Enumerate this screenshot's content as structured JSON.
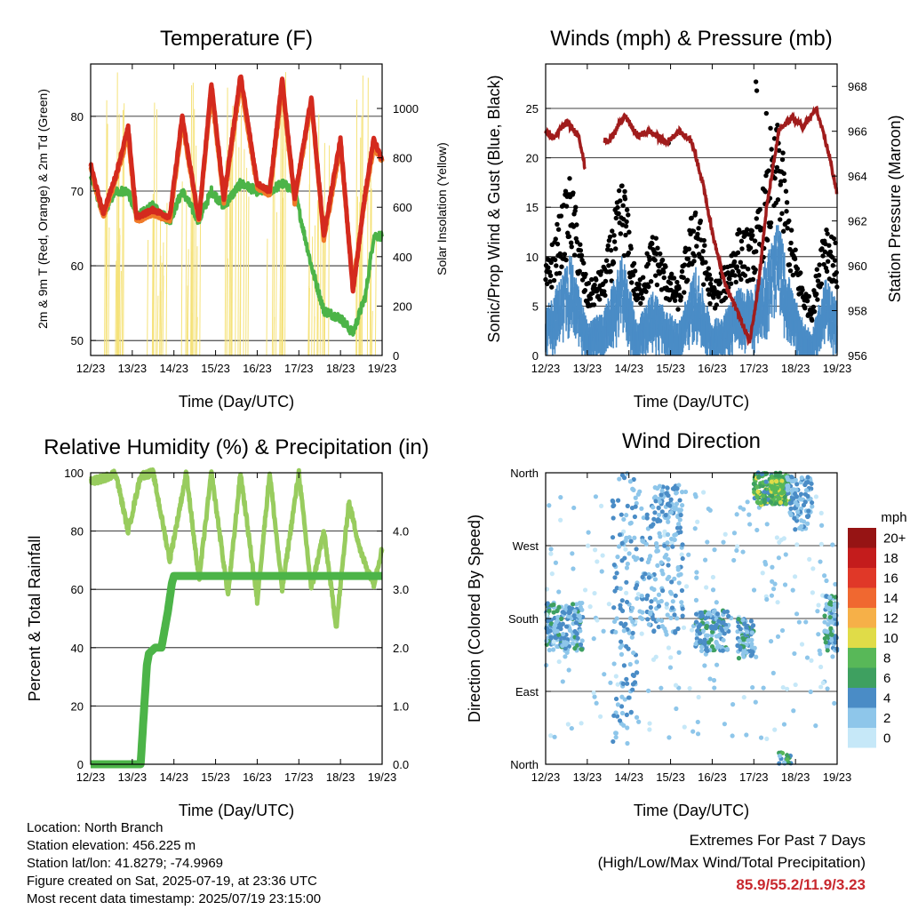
{
  "panels": [
    {
      "title": "Temperature (F)",
      "xlabel": "Time (Day/UTC)",
      "ylabel_left": "2m & 9m T (Red, Orange) & 2m Td (Green)",
      "ylabel_right": "Solar Insolation (Yellow)",
      "xticks": [
        "12/23",
        "13/23",
        "14/23",
        "15/23",
        "16/23",
        "17/23",
        "18/23",
        "19/23"
      ],
      "yticks_left": [
        "50",
        "60",
        "70",
        "80"
      ],
      "yticks_right": [
        "0",
        "200",
        "400",
        "600",
        "800",
        "1000"
      ]
    },
    {
      "title": "Winds (mph) & Pressure (mb)",
      "xlabel": "Time (Day/UTC)",
      "ylabel_left": "Sonic/Prop Wind & Gust (Blue, Black)",
      "ylabel_right": "Station Pressure (Maroon)",
      "xticks": [
        "12/23",
        "13/23",
        "14/23",
        "15/23",
        "16/23",
        "17/23",
        "18/23",
        "19/23"
      ],
      "yticks_left": [
        "0",
        "5",
        "10",
        "15",
        "20",
        "25"
      ],
      "yticks_right": [
        "956",
        "958",
        "960",
        "962",
        "964",
        "966",
        "968"
      ]
    },
    {
      "title": "Relative Humidity (%) & Precipitation (in)",
      "xlabel": "Time (Day/UTC)",
      "ylabel_left": "Percent & Total Rainfall",
      "ylabel_right": "",
      "xticks": [
        "12/23",
        "13/23",
        "14/23",
        "15/23",
        "16/23",
        "17/23",
        "18/23",
        "19/23"
      ],
      "yticks_left": [
        "0",
        "20",
        "40",
        "60",
        "80",
        "100"
      ],
      "yticks_right": [
        "0.0",
        "1.0",
        "2.0",
        "3.0",
        "4.0"
      ]
    },
    {
      "title": "Wind Direction",
      "xlabel": "Time (Day/UTC)",
      "ylabel_left": "Direction (Colored By Speed)",
      "ylabel_right": "",
      "xticks": [
        "12/23",
        "13/23",
        "14/23",
        "15/23",
        "16/23",
        "17/23",
        "18/23",
        "19/23"
      ],
      "yticks_left": [
        "North",
        "East",
        "South",
        "West",
        "North"
      ],
      "yticks_right": []
    }
  ],
  "colorbar": {
    "unit": "mph",
    "labels": [
      "0",
      "2",
      "4",
      "6",
      "8",
      "10",
      "12",
      "14",
      "16",
      "18",
      "20+"
    ],
    "colors": [
      "#c6e8f8",
      "#8ec6ea",
      "#4a8cc6",
      "#3ea060",
      "#58b858",
      "#e0dc48",
      "#f6b048",
      "#f06830",
      "#e03828",
      "#c41c1c",
      "#961414"
    ]
  },
  "footer": {
    "lines": [
      "Location: North Branch",
      "Station elevation: 456.225 m",
      "Station lat/lon: 41.8279; -74.9969",
      "Figure created on Sat, 2025-07-19, at 23:36 UTC",
      "Most recent data timestamp: 2025/07/19 23:15:00"
    ]
  },
  "extremes": {
    "title": "Extremes For Past 7 Days",
    "subtitle": "(High/Low/Max Wind/Total Precipitation)",
    "values": "85.9/55.2/11.9/3.23",
    "value_color": "#c8282e"
  },
  "chart_data": [
    {
      "type": "line",
      "title": "Temperature (F)",
      "xlabel": "Time (Day/UTC)",
      "ylabel": "2m & 9m T (Red, Orange) & 2m Td (Green)",
      "y2label": "Solar Insolation (Yellow)",
      "x_range_days": [
        12,
        19
      ],
      "ylim": [
        48,
        87
      ],
      "y2lim": [
        0,
        1180
      ],
      "x_days": [
        12.0,
        12.3,
        12.6,
        12.9,
        13.1,
        13.5,
        13.9,
        14.2,
        14.6,
        14.9,
        15.2,
        15.6,
        16.0,
        16.3,
        16.6,
        16.9,
        17.3,
        17.6,
        18.0,
        18.3,
        18.6,
        18.8,
        19.0
      ],
      "series": [
        {
          "name": "2m T",
          "color": "#d42a1e",
          "values": [
            73.5,
            67,
            72,
            78.5,
            66.5,
            67.5,
            66.5,
            80,
            66,
            84.5,
            69,
            85.5,
            71,
            70,
            85,
            69,
            82.5,
            64,
            77,
            56.5,
            70,
            77,
            74
          ]
        },
        {
          "name": "9m T",
          "color": "#f07a28",
          "values": [
            73,
            66.5,
            71.5,
            77.5,
            66,
            67,
            66,
            79,
            66,
            83.5,
            68.5,
            84.5,
            70.5,
            69.5,
            84,
            68.5,
            82,
            63.5,
            76,
            57.5,
            69.5,
            76,
            74
          ]
        },
        {
          "name": "2m Td",
          "color": "#4cb448",
          "values": [
            72,
            67,
            70,
            70,
            66.5,
            68,
            66,
            70,
            66,
            70,
            68,
            71,
            70,
            70,
            71,
            70,
            60,
            54,
            53,
            51,
            56,
            64,
            64
          ]
        },
        {
          "name": "Solar Insolation",
          "axis": "right",
          "color": "#f5e27a",
          "note": "daily peaks near 900-1150 W/m2"
        }
      ]
    },
    {
      "type": "scatter",
      "title": "Winds (mph) & Pressure (mb)",
      "xlabel": "Time (Day/UTC)",
      "ylabel": "Sonic/Prop Wind & Gust (Blue, Black)",
      "y2label": "Station Pressure (Maroon)",
      "x_range_days": [
        12,
        19
      ],
      "ylim": [
        0,
        29.5
      ],
      "y2lim": [
        956,
        969
      ],
      "series": [
        {
          "name": "Station Pressure",
          "axis": "right",
          "color": "#a01c1c",
          "x_days": [
            12.0,
            12.2,
            12.5,
            12.8,
            12.95,
            13.1,
            13.5,
            13.9,
            14.2,
            14.5,
            14.9,
            15.2,
            15.5,
            15.8,
            16.0,
            16.3,
            16.6,
            16.9,
            17.1,
            17.3,
            17.6,
            17.9,
            18.2,
            18.5,
            18.8,
            19.0
          ],
          "values": [
            966,
            965.7,
            966.4,
            965.8,
            964.3,
            966,
            965.5,
            966.7,
            965.8,
            966,
            965.5,
            966,
            965.6,
            963.5,
            961.5,
            959.2,
            958,
            956.6,
            959,
            962.5,
            966,
            966.6,
            966.2,
            967,
            965,
            963.2
          ]
        },
        {
          "name": "Wind (Sonic/Prop)",
          "color": "#4a8cc6",
          "typical_range": [
            1,
            12
          ]
        },
        {
          "name": "Gust",
          "color": "#000000",
          "max": 27.7
        }
      ]
    },
    {
      "type": "line",
      "title": "Relative Humidity (%) & Precipitation (in)",
      "xlabel": "Time (Day/UTC)",
      "ylabel": "Percent & Total Rainfall",
      "x_range_days": [
        12,
        19
      ],
      "ylim": [
        0,
        100
      ],
      "y2lim": [
        0,
        5.0
      ],
      "series": [
        {
          "name": "Relative Humidity",
          "color": "#98cc5e",
          "x_days": [
            12.0,
            12.3,
            12.6,
            12.9,
            13.2,
            13.5,
            13.9,
            14.3,
            14.6,
            14.9,
            15.3,
            15.6,
            16.0,
            16.3,
            16.6,
            17.0,
            17.3,
            17.6,
            17.9,
            18.2,
            18.5,
            18.8,
            19.0
          ],
          "values": [
            97,
            98,
            100,
            80,
            99,
            100,
            70,
            100,
            63,
            100,
            58,
            100,
            56,
            100,
            60,
            100,
            60,
            80,
            47,
            90,
            72,
            62,
            74
          ]
        },
        {
          "name": "Total Precipitation",
          "axis": "right",
          "color": "#4cb448",
          "x_days": [
            12.0,
            13.2,
            13.35,
            13.4,
            13.55,
            13.7,
            13.85,
            13.95,
            14.0,
            19.0
          ],
          "values": [
            0.0,
            0.0,
            1.7,
            1.9,
            2.0,
            2.0,
            2.6,
            3.1,
            3.23,
            3.23
          ]
        }
      ]
    },
    {
      "type": "scatter",
      "title": "Wind Direction",
      "xlabel": "Time (Day/UTC)",
      "ylabel": "Direction (Colored By Speed)",
      "x_range_days": [
        12,
        19
      ],
      "y_categories": [
        "North",
        "East",
        "South",
        "West",
        "North"
      ],
      "color_scale": "mph 0 to 20+",
      "dominant_directions": "South-Southeast early, North during 17/23-18/23"
    }
  ]
}
